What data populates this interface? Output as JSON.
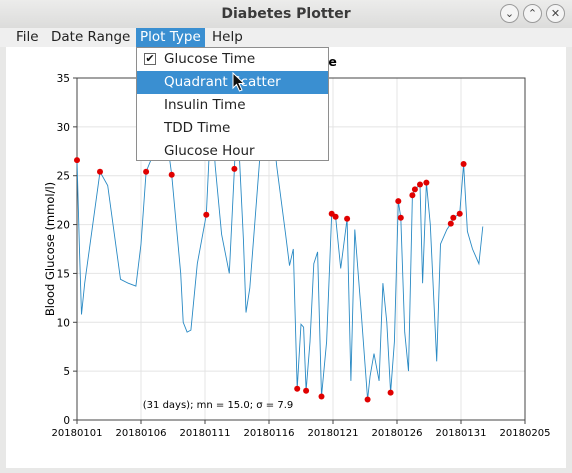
{
  "window": {
    "title": "Diabetes Plotter",
    "buttons": [
      "minimize-icon",
      "maximize-icon",
      "close-icon"
    ]
  },
  "menubar": {
    "items": [
      "File",
      "Date Range",
      "Plot Type",
      "Help"
    ],
    "active": "Plot Type"
  },
  "dropdown": {
    "items": [
      "Glucose Time",
      "Quadrant Scatter",
      "Insulin Time",
      "TDD Time",
      "Glucose Hour"
    ],
    "checked": "Glucose Time",
    "highlighted": "Quadrant Scatter"
  },
  "chart_data": {
    "type": "line",
    "title": "-Time",
    "ylabel": "Blood Glucose (mmol/l)",
    "xlabel": "",
    "ylim": [
      0,
      35
    ],
    "yticks": [
      0,
      5,
      10,
      15,
      20,
      25,
      30,
      35
    ],
    "xlim": [
      0,
      35
    ],
    "xticks": [
      0,
      5,
      10,
      15,
      20,
      25,
      30,
      35
    ],
    "xticklabels": [
      "20180101",
      "20180106",
      "20180111",
      "20180116",
      "20180121",
      "20180126",
      "20180131",
      "20180205"
    ],
    "grid": true,
    "line_color": "#2a8ac4",
    "point_color": "#e00000",
    "annotation": "(31 days); mn = 15.0; σ = 7.9",
    "line": [
      [
        0.0,
        26.6
      ],
      [
        0.2,
        17.0
      ],
      [
        0.35,
        10.8
      ],
      [
        0.6,
        14.0
      ],
      [
        1.8,
        25.4
      ],
      [
        2.4,
        24.0
      ],
      [
        3.4,
        14.4
      ],
      [
        4.0,
        14.0
      ],
      [
        4.6,
        13.7
      ],
      [
        5.0,
        18.0
      ],
      [
        5.4,
        25.4
      ],
      [
        6.2,
        28.0
      ],
      [
        7.0,
        29.0
      ],
      [
        7.4,
        25.1
      ],
      [
        8.1,
        15.0
      ],
      [
        8.3,
        10.0
      ],
      [
        8.6,
        9.0
      ],
      [
        8.9,
        9.2
      ],
      [
        9.4,
        16.0
      ],
      [
        10.1,
        21.0
      ],
      [
        10.5,
        32.0
      ],
      [
        10.8,
        26.0
      ],
      [
        11.3,
        19.0
      ],
      [
        11.9,
        15.0
      ],
      [
        12.3,
        25.7
      ],
      [
        12.5,
        32.0
      ],
      [
        13.0,
        18.5
      ],
      [
        13.2,
        11.0
      ],
      [
        13.5,
        13.5
      ],
      [
        14.2,
        25.5
      ],
      [
        14.7,
        34.0
      ],
      [
        15.2,
        31.0
      ],
      [
        15.6,
        26.0
      ],
      [
        16.3,
        19.0
      ],
      [
        16.6,
        15.8
      ],
      [
        16.9,
        17.5
      ],
      [
        17.2,
        3.2
      ],
      [
        17.5,
        9.8
      ],
      [
        17.7,
        9.5
      ],
      [
        17.9,
        3.0
      ],
      [
        18.2,
        8.0
      ],
      [
        18.5,
        16.0
      ],
      [
        18.8,
        17.2
      ],
      [
        19.1,
        2.4
      ],
      [
        19.5,
        8.0
      ],
      [
        19.9,
        21.1
      ],
      [
        20.2,
        20.8
      ],
      [
        20.6,
        15.5
      ],
      [
        21.1,
        20.6
      ],
      [
        21.4,
        4.0
      ],
      [
        21.7,
        19.5
      ],
      [
        22.2,
        11.0
      ],
      [
        22.7,
        2.1
      ],
      [
        22.9,
        4.5
      ],
      [
        23.2,
        6.8
      ],
      [
        23.6,
        4.0
      ],
      [
        23.9,
        14.0
      ],
      [
        24.2,
        10.0
      ],
      [
        24.5,
        2.8
      ],
      [
        24.8,
        8.0
      ],
      [
        25.1,
        22.4
      ],
      [
        25.3,
        20.7
      ],
      [
        25.6,
        9.0
      ],
      [
        25.9,
        5.0
      ],
      [
        26.2,
        23.0
      ],
      [
        26.4,
        23.6
      ],
      [
        26.8,
        24.1
      ],
      [
        27.0,
        14.0
      ],
      [
        27.3,
        24.3
      ],
      [
        27.6,
        20.0
      ],
      [
        28.1,
        6.0
      ],
      [
        28.4,
        18.0
      ],
      [
        28.9,
        19.5
      ],
      [
        29.2,
        20.1
      ],
      [
        29.4,
        20.7
      ],
      [
        29.9,
        21.1
      ],
      [
        30.2,
        26.2
      ],
      [
        30.5,
        19.3
      ],
      [
        30.9,
        17.5
      ],
      [
        31.4,
        16.0
      ],
      [
        31.7,
        19.8
      ]
    ],
    "points": [
      [
        0.0,
        26.6
      ],
      [
        1.8,
        25.4
      ],
      [
        5.4,
        25.4
      ],
      [
        7.4,
        25.1
      ],
      [
        10.1,
        21.0
      ],
      [
        12.3,
        25.7
      ],
      [
        17.2,
        3.2
      ],
      [
        17.9,
        3.0
      ],
      [
        19.1,
        2.4
      ],
      [
        19.9,
        21.1
      ],
      [
        20.2,
        20.8
      ],
      [
        21.1,
        20.6
      ],
      [
        22.7,
        2.1
      ],
      [
        24.5,
        2.8
      ],
      [
        25.1,
        22.4
      ],
      [
        25.3,
        20.7
      ],
      [
        26.2,
        23.0
      ],
      [
        26.4,
        23.6
      ],
      [
        26.8,
        24.1
      ],
      [
        27.3,
        24.3
      ],
      [
        29.2,
        20.1
      ],
      [
        29.4,
        20.7
      ],
      [
        29.9,
        21.1
      ],
      [
        30.2,
        26.2
      ]
    ]
  }
}
